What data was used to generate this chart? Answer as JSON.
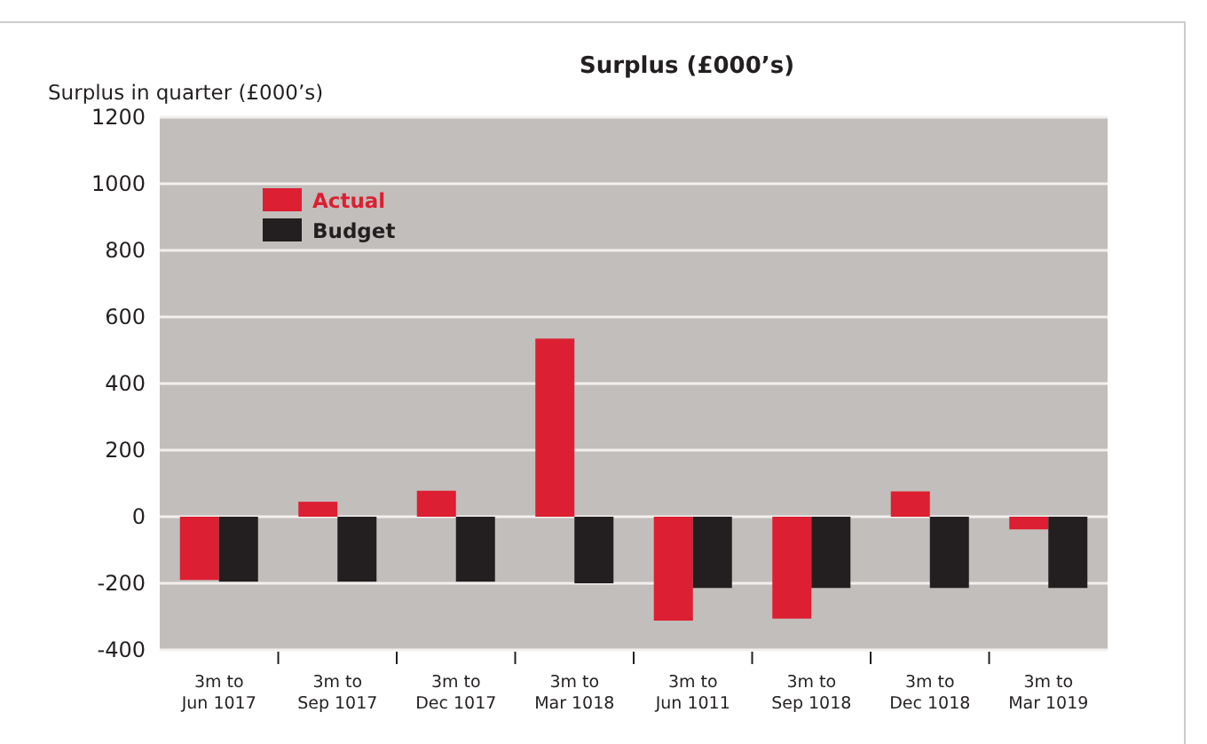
{
  "chart_data": {
    "type": "bar",
    "title": "Surplus (£000’s)",
    "ylabel": "Surplus in quarter (£000’s)",
    "categories": [
      "3m to\nJun 1017",
      "3m to\nSep 1017",
      "3m to\nDec 1017",
      "3m to\nMar 1018",
      "3m to\nJun 1011",
      "3m to\nSep 1018",
      "3m to\nDec 1018",
      "3m to\nMar 1019"
    ],
    "series": [
      {
        "name": "Actual",
        "color": "#dc1f32",
        "values": [
          -190,
          45,
          78,
          535,
          -312,
          -306,
          76,
          -38
        ]
      },
      {
        "name": "Budget",
        "color": "#231f20",
        "values": [
          -195,
          -195,
          -195,
          -200,
          -214,
          -214,
          -214,
          -214
        ]
      }
    ],
    "ylim": [
      -400,
      1200
    ],
    "yticks": [
      -400,
      -200,
      0,
      200,
      400,
      600,
      800,
      1000,
      1200
    ],
    "grid": "y",
    "legend": "top left"
  }
}
